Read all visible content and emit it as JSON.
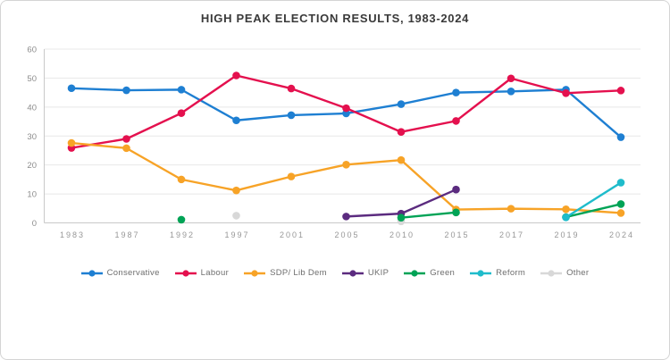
{
  "title": "HIGH PEAK ELECTION RESULTS, 1983-2024",
  "chart_data": {
    "type": "line",
    "title": "HIGH PEAK ELECTION RESULTS, 1983-2024",
    "categories": [
      "1983",
      "1987",
      "1992",
      "1997",
      "2001",
      "2005",
      "2010",
      "2015",
      "2017",
      "2019",
      "2024"
    ],
    "xlabel": "",
    "ylabel": "",
    "ylim": [
      0,
      60
    ],
    "yticks": [
      0,
      10,
      20,
      30,
      40,
      50,
      60
    ],
    "grid": true,
    "legend_position": "bottom",
    "series": [
      {
        "name": "Conservative",
        "color": "#1E7FD2",
        "values": [
          46.5,
          45.8,
          46.0,
          35.4,
          37.2,
          37.8,
          41.0,
          45.0,
          45.4,
          46.0,
          29.6
        ]
      },
      {
        "name": "Labour",
        "color": "#E4104E",
        "values": [
          25.9,
          29.0,
          37.9,
          50.9,
          46.4,
          39.6,
          31.4,
          35.2,
          49.9,
          44.8,
          45.7
        ]
      },
      {
        "name": "SDP/ Lib Dem",
        "color": "#F7A327",
        "values": [
          27.6,
          25.8,
          15.0,
          11.2,
          16.0,
          20.1,
          21.7,
          4.6,
          4.9,
          4.7,
          3.4
        ]
      },
      {
        "name": "UKIP",
        "color": "#5B2B7F",
        "values": [
          null,
          null,
          null,
          null,
          null,
          2.2,
          3.2,
          11.5,
          null,
          null,
          null
        ]
      },
      {
        "name": "Green",
        "color": "#00A356",
        "values": [
          null,
          null,
          1.1,
          null,
          null,
          null,
          1.8,
          3.6,
          null,
          2.0,
          6.5
        ]
      },
      {
        "name": "Reform",
        "color": "#1FBCCB",
        "values": [
          null,
          null,
          null,
          null,
          null,
          null,
          null,
          null,
          null,
          1.9,
          13.9
        ]
      },
      {
        "name": "Other",
        "color": "#D8D8D8",
        "values": [
          null,
          null,
          null,
          2.5,
          null,
          null,
          0.5,
          null,
          null,
          null,
          null
        ]
      }
    ]
  }
}
